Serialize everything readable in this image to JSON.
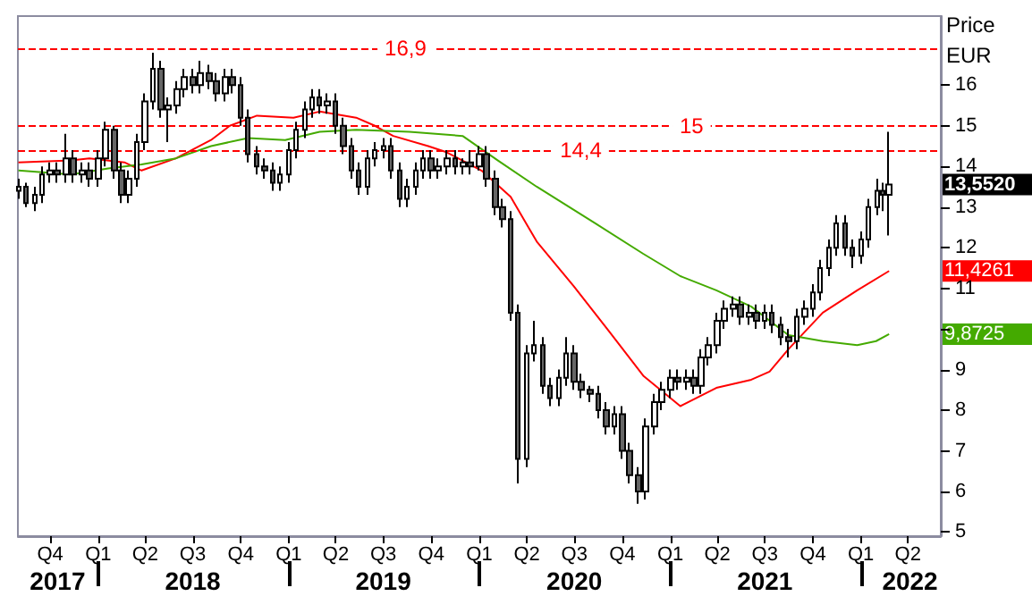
{
  "chart_data": {
    "type": "candlestick",
    "ylabel": "Price\nEUR",
    "colors": [
      "#ffffff",
      "#666666",
      "#ffffff",
      "#ffffff",
      "#ffffff",
      "#666666",
      "#ffffff",
      "#666666",
      "#ffffff",
      "#666666",
      "#ffffff",
      "#ffffff",
      "#666666",
      "#666666",
      "#ffffff",
      "#ffffff",
      "#ffffff",
      "#ffffff",
      "#666666",
      "#ffffff",
      "#ffffff",
      "#ffffff",
      "#666666",
      "#ffffff",
      "#666666",
      "#666666",
      "#ffffff",
      "#666666",
      "#666666",
      "#666666",
      "#666666",
      "#666666",
      "#666666",
      "#ffffff",
      "#ffffff",
      "#ffffff",
      "#ffffff",
      "#ffffff",
      "#666666",
      "#ffffff",
      "#666666",
      "#666666",
      "#666666",
      "#666666",
      "#ffffff",
      "#ffffff",
      "#ffffff",
      "#666666",
      "#666666",
      "#ffffff",
      "#ffffff",
      "#ffffff",
      "#666666",
      "#ffffff",
      "#ffffff",
      "#666666",
      "#ffffff",
      "#666666",
      "#ffffff",
      "#666666",
      "#666666",
      "#666666",
      "#666666",
      "#666666",
      "#ffffff",
      "#ffffff",
      "#666666",
      "#666666",
      "#ffffff",
      "#ffffff",
      "#666666",
      "#666666",
      "#666666",
      "#666666",
      "#666666",
      "#ffffff",
      "#666666",
      "#666666",
      "#666666",
      "#ffffff",
      "#ffffff",
      "#ffffff",
      "#ffffff",
      "#666666",
      "#ffffff",
      "#666666",
      "#ffffff",
      "#ffffff",
      "#ffffff",
      "#ffffff",
      "#ffffff",
      "#666666",
      "#ffffff",
      "#666666",
      "#ffffff",
      "#666666",
      "#666666",
      "#666666",
      "#ffffff",
      "#ffffff",
      "#ffffff",
      "#ffffff",
      "#ffffff",
      "#ffffff",
      "#666666",
      "#666666",
      "#ffffff",
      "#ffffff",
      "#ffffff",
      "#666666",
      "#ffffff"
    ],
    "x": [
      "2017-08-01",
      "2017-08-15",
      "2017-09-01",
      "2017-09-15",
      "2017-10-01",
      "2017-10-15",
      "2017-11-01",
      "2017-11-15",
      "2017-12-01",
      "2017-12-15",
      "2018-01-01",
      "2018-01-15",
      "2018-02-01",
      "2018-02-15",
      "2018-03-01",
      "2018-03-15",
      "2018-04-01",
      "2018-04-15",
      "2018-05-01",
      "2018-05-15",
      "2018-06-01",
      "2018-06-15",
      "2018-07-01",
      "2018-07-15",
      "2018-08-01",
      "2018-08-15",
      "2018-09-01",
      "2018-09-15",
      "2018-10-01",
      "2018-10-15",
      "2018-11-01",
      "2018-11-15",
      "2018-12-01",
      "2018-12-15",
      "2019-01-01",
      "2019-01-15",
      "2019-02-01",
      "2019-02-15",
      "2019-03-01",
      "2019-03-15",
      "2019-04-01",
      "2019-04-15",
      "2019-05-01",
      "2019-05-15",
      "2019-06-01",
      "2019-06-15",
      "2019-07-01",
      "2019-07-15",
      "2019-08-01",
      "2019-08-15",
      "2019-09-01",
      "2019-09-15",
      "2019-10-01",
      "2019-10-15",
      "2019-11-01",
      "2019-11-15",
      "2019-12-01",
      "2019-12-15",
      "2020-01-01",
      "2020-01-15",
      "2020-02-01",
      "2020-02-15",
      "2020-03-01",
      "2020-03-15",
      "2020-04-01",
      "2020-04-15",
      "2020-05-01",
      "2020-05-15",
      "2020-06-01",
      "2020-06-15",
      "2020-07-01",
      "2020-07-15",
      "2020-08-01",
      "2020-08-15",
      "2020-09-01",
      "2020-09-15",
      "2020-10-01",
      "2020-10-15",
      "2020-11-01",
      "2020-11-15",
      "2020-12-01",
      "2020-12-15",
      "2021-01-01",
      "2021-01-15",
      "2021-02-01",
      "2021-02-15",
      "2021-03-01",
      "2021-03-15",
      "2021-04-01",
      "2021-04-15",
      "2021-05-01",
      "2021-05-15",
      "2021-06-01",
      "2021-06-15",
      "2021-07-01",
      "2021-07-15",
      "2021-08-01",
      "2021-08-15",
      "2021-09-01",
      "2021-09-15",
      "2021-10-01",
      "2021-10-15",
      "2021-11-01",
      "2021-11-15",
      "2021-12-01",
      "2021-12-15",
      "2022-01-01",
      "2022-01-15",
      "2022-02-01",
      "2022-02-12",
      "2022-02-24"
    ],
    "ohlc": [
      [
        13.4,
        13.7,
        13.2,
        13.5
      ],
      [
        13.5,
        13.6,
        13.0,
        13.1
      ],
      [
        13.1,
        13.5,
        12.9,
        13.3
      ],
      [
        13.3,
        14.0,
        13.1,
        13.8
      ],
      [
        13.8,
        14.1,
        13.6,
        13.9
      ],
      [
        13.9,
        14.1,
        13.6,
        13.8
      ],
      [
        13.8,
        14.8,
        13.6,
        14.2
      ],
      [
        14.2,
        14.4,
        13.6,
        13.8
      ],
      [
        13.8,
        14.1,
        13.6,
        13.9
      ],
      [
        13.9,
        14.1,
        13.5,
        13.7
      ],
      [
        13.7,
        14.4,
        13.5,
        14.2
      ],
      [
        14.2,
        15.1,
        14.0,
        14.9
      ],
      [
        14.9,
        15.0,
        13.7,
        13.9
      ],
      [
        13.9,
        14.1,
        13.1,
        13.3
      ],
      [
        13.3,
        13.9,
        13.1,
        13.7
      ],
      [
        13.7,
        14.8,
        13.5,
        14.6
      ],
      [
        14.6,
        15.8,
        14.4,
        15.6
      ],
      [
        15.6,
        16.8,
        15.4,
        16.4
      ],
      [
        16.4,
        16.6,
        15.2,
        15.4
      ],
      [
        15.4,
        15.7,
        14.6,
        15.5
      ],
      [
        15.5,
        16.1,
        15.3,
        15.9
      ],
      [
        15.9,
        16.4,
        15.7,
        16.2
      ],
      [
        16.2,
        16.4,
        15.8,
        16.0
      ],
      [
        16.0,
        16.6,
        15.8,
        16.3
      ],
      [
        16.3,
        16.5,
        15.9,
        16.1
      ],
      [
        16.1,
        16.3,
        15.6,
        15.8
      ],
      [
        15.8,
        16.4,
        15.6,
        16.2
      ],
      [
        16.2,
        16.4,
        15.8,
        16.0
      ],
      [
        16.0,
        16.2,
        15.0,
        15.2
      ],
      [
        15.2,
        15.4,
        14.1,
        14.3
      ],
      [
        14.3,
        14.5,
        13.8,
        14.0
      ],
      [
        14.0,
        14.2,
        13.7,
        13.9
      ],
      [
        13.9,
        14.1,
        13.4,
        13.6
      ],
      [
        13.6,
        14.0,
        13.4,
        13.8
      ],
      [
        13.8,
        14.6,
        13.6,
        14.4
      ],
      [
        14.4,
        15.1,
        14.2,
        14.9
      ],
      [
        14.9,
        15.6,
        14.7,
        15.4
      ],
      [
        15.4,
        15.9,
        15.2,
        15.7
      ],
      [
        15.7,
        15.9,
        15.3,
        15.5
      ],
      [
        15.5,
        15.8,
        15.3,
        15.6
      ],
      [
        15.6,
        15.8,
        14.8,
        15.0
      ],
      [
        15.0,
        15.2,
        14.3,
        14.5
      ],
      [
        14.5,
        14.7,
        13.7,
        13.9
      ],
      [
        13.9,
        14.1,
        13.3,
        13.5
      ],
      [
        13.5,
        14.4,
        13.3,
        14.2
      ],
      [
        14.2,
        14.6,
        14.0,
        14.4
      ],
      [
        14.4,
        14.7,
        14.2,
        14.5
      ],
      [
        14.5,
        14.7,
        13.7,
        13.9
      ],
      [
        13.9,
        14.1,
        13.0,
        13.2
      ],
      [
        13.2,
        13.7,
        13.0,
        13.5
      ],
      [
        13.5,
        14.1,
        13.3,
        13.9
      ],
      [
        13.9,
        14.4,
        13.7,
        14.2
      ],
      [
        14.2,
        14.4,
        13.7,
        13.9
      ],
      [
        13.9,
        14.2,
        13.7,
        14.0
      ],
      [
        14.0,
        14.4,
        13.8,
        14.2
      ],
      [
        14.2,
        14.4,
        13.8,
        14.0
      ],
      [
        14.0,
        14.2,
        13.8,
        14.1
      ],
      [
        14.1,
        14.4,
        13.8,
        14.0
      ],
      [
        14.0,
        14.5,
        13.9,
        14.3
      ],
      [
        14.3,
        14.5,
        13.5,
        13.7
      ],
      [
        13.7,
        13.9,
        12.8,
        13.0
      ],
      [
        13.0,
        13.2,
        12.5,
        12.7
      ],
      [
        12.7,
        12.9,
        10.2,
        10.4
      ],
      [
        10.4,
        10.6,
        6.2,
        6.8
      ],
      [
        6.8,
        9.6,
        6.6,
        9.4
      ],
      [
        9.4,
        10.2,
        9.2,
        9.6
      ],
      [
        9.6,
        9.8,
        8.4,
        8.6
      ],
      [
        8.6,
        8.8,
        8.1,
        8.3
      ],
      [
        8.3,
        9.0,
        8.1,
        8.8
      ],
      [
        8.8,
        9.8,
        8.6,
        9.4
      ],
      [
        9.4,
        9.6,
        8.5,
        8.7
      ],
      [
        8.7,
        8.9,
        8.3,
        8.5
      ],
      [
        8.5,
        8.6,
        8.2,
        8.4
      ],
      [
        8.4,
        8.6,
        7.8,
        8.0
      ],
      [
        8.0,
        8.2,
        7.4,
        7.6
      ],
      [
        7.6,
        8.1,
        7.4,
        7.9
      ],
      [
        7.9,
        8.1,
        6.8,
        7.0
      ],
      [
        7.0,
        7.2,
        6.2,
        6.4
      ],
      [
        6.4,
        6.6,
        5.7,
        6.0
      ],
      [
        6.0,
        7.8,
        5.8,
        7.6
      ],
      [
        7.6,
        8.4,
        7.4,
        8.2
      ],
      [
        8.2,
        8.7,
        8.0,
        8.5
      ],
      [
        8.5,
        9.0,
        8.3,
        8.8
      ],
      [
        8.8,
        9.0,
        8.5,
        8.7
      ],
      [
        8.7,
        9.0,
        8.5,
        8.8
      ],
      [
        8.8,
        9.0,
        8.4,
        8.6
      ],
      [
        8.6,
        9.5,
        8.4,
        9.3
      ],
      [
        9.3,
        9.8,
        9.1,
        9.6
      ],
      [
        9.6,
        10.4,
        9.4,
        10.2
      ],
      [
        10.2,
        10.7,
        10.0,
        10.5
      ],
      [
        10.5,
        10.8,
        10.3,
        10.6
      ],
      [
        10.6,
        10.8,
        10.1,
        10.3
      ],
      [
        10.3,
        10.6,
        10.1,
        10.4
      ],
      [
        10.4,
        10.6,
        10.0,
        10.2
      ],
      [
        10.2,
        10.6,
        10.0,
        10.4
      ],
      [
        10.4,
        10.6,
        9.9,
        10.1
      ],
      [
        10.1,
        10.3,
        9.6,
        9.8
      ],
      [
        9.8,
        10.0,
        9.3,
        9.7
      ],
      [
        9.7,
        10.5,
        9.5,
        10.3
      ],
      [
        10.3,
        10.7,
        10.1,
        10.5
      ],
      [
        10.5,
        11.1,
        10.3,
        10.9
      ],
      [
        10.9,
        11.7,
        10.7,
        11.5
      ],
      [
        11.5,
        12.2,
        11.3,
        12.0
      ],
      [
        12.0,
        12.8,
        11.8,
        12.6
      ],
      [
        12.6,
        12.8,
        11.8,
        12.0
      ],
      [
        12.0,
        12.2,
        11.5,
        11.8
      ],
      [
        11.8,
        12.4,
        11.6,
        12.2
      ],
      [
        12.2,
        13.2,
        12.0,
        13.0
      ],
      [
        13.0,
        13.7,
        12.8,
        13.4
      ],
      [
        13.4,
        13.6,
        12.9,
        13.3
      ],
      [
        13.3,
        14.85,
        12.3,
        13.552
      ]
    ],
    "series": [
      {
        "type": "line",
        "color": "#ff0000",
        "x": [
          "2017-08-01",
          "2017-11-10",
          "2017-12-15",
          "2018-02-20",
          "2018-03-25",
          "2018-05-30",
          "2018-08-05",
          "2018-09-10",
          "2018-11-01",
          "2019-01-10",
          "2019-03-01",
          "2019-05-10",
          "2019-06-15",
          "2019-07-20",
          "2019-09-25",
          "2019-10-30",
          "2020-01-05",
          "2020-03-01",
          "2020-04-20",
          "2020-06-30",
          "2020-09-05",
          "2020-11-10",
          "2021-01-20",
          "2021-03-30",
          "2021-06-05",
          "2021-07-10",
          "2021-08-15",
          "2021-10-20",
          "2021-12-25",
          "2022-02-24"
        ],
        "values": [
          14.1,
          14.15,
          14.2,
          14.1,
          13.9,
          14.2,
          14.65,
          15.0,
          15.25,
          15.2,
          15.35,
          15.2,
          15.0,
          14.75,
          14.5,
          14.35,
          13.9,
          13.25,
          12.15,
          11.05,
          9.95,
          8.85,
          8.1,
          8.55,
          8.75,
          8.95,
          9.5,
          10.4,
          10.95,
          11.4261
        ]
      },
      {
        "type": "line",
        "color": "#44aa00",
        "x": [
          "2017-08-01",
          "2017-11-10",
          "2018-01-20",
          "2018-03-25",
          "2018-05-30",
          "2018-08-05",
          "2018-10-15",
          "2018-12-25",
          "2019-03-01",
          "2019-05-10",
          "2019-08-20",
          "2019-11-30",
          "2020-02-05",
          "2020-04-20",
          "2020-08-10",
          "2020-11-10",
          "2021-01-20",
          "2021-03-30",
          "2021-06-05",
          "2021-08-15",
          "2021-10-20",
          "2021-12-25",
          "2022-01-30",
          "2022-02-24"
        ],
        "values": [
          13.9,
          13.8,
          13.95,
          14.05,
          14.2,
          14.5,
          14.7,
          14.65,
          14.85,
          14.9,
          14.85,
          14.75,
          14.15,
          13.5,
          12.6,
          11.85,
          11.3,
          10.95,
          10.55,
          9.85,
          9.7,
          9.6,
          9.7,
          9.8725
        ]
      }
    ],
    "xlim": [
      "2017-07-31",
      "2022-06-03"
    ],
    "xticks": [
      {
        "value": "2017-10-01",
        "label": "Q4"
      },
      {
        "value": "2018-01-01",
        "label": "Q1"
      },
      {
        "value": "2018-04-01",
        "label": "Q2"
      },
      {
        "value": "2018-07-01",
        "label": "Q3"
      },
      {
        "value": "2018-10-01",
        "label": "Q4"
      },
      {
        "value": "2019-01-01",
        "label": "Q1"
      },
      {
        "value": "2019-04-01",
        "label": "Q2"
      },
      {
        "value": "2019-07-01",
        "label": "Q3"
      },
      {
        "value": "2019-10-01",
        "label": "Q4"
      },
      {
        "value": "2020-01-01",
        "label": "Q1"
      },
      {
        "value": "2020-04-01",
        "label": "Q2"
      },
      {
        "value": "2020-07-01",
        "label": "Q3"
      },
      {
        "value": "2020-10-01",
        "label": "Q4"
      },
      {
        "value": "2021-01-01",
        "label": "Q1"
      },
      {
        "value": "2021-04-01",
        "label": "Q2"
      },
      {
        "value": "2021-07-01",
        "label": "Q3"
      },
      {
        "value": "2021-10-01",
        "label": "Q4"
      },
      {
        "value": "2022-01-01",
        "label": "Q1"
      },
      {
        "value": "2022-04-01",
        "label": "Q2"
      }
    ],
    "x2lim": [
      "2017-07-31",
      "2022-06-03"
    ],
    "x2ticks": [
      {
        "value": "2017-10-15",
        "label": "2017"
      },
      {
        "value": "2018-01-01",
        "label": null
      },
      {
        "value": "2018-07-01",
        "label": "2018"
      },
      {
        "value": "2019-01-01",
        "label": null
      },
      {
        "value": "2019-07-01",
        "label": "2019"
      },
      {
        "value": "2020-01-01",
        "label": null
      },
      {
        "value": "2020-07-01",
        "label": "2020"
      },
      {
        "value": "2021-01-01",
        "label": null
      },
      {
        "value": "2021-07-01",
        "label": "2021"
      },
      {
        "value": "2022-01-01",
        "label": null
      },
      {
        "value": "2022-04-05",
        "label": "2022"
      }
    ],
    "ylim": [
      4.9,
      17.7
    ],
    "yticks": [
      5,
      6,
      7,
      8,
      9,
      {
        "value": 10,
        "label": null
      },
      11,
      12,
      13,
      14,
      15,
      16
    ],
    "ref_lines": [
      {
        "axis": "y",
        "value": 16.9,
        "label": "16,9",
        "color": "#ff0000",
        "line_style": "dashed"
      },
      {
        "axis": "y",
        "value": 15,
        "label": "15",
        "color": "#ff0000",
        "line_style": "dashed"
      },
      {
        "axis": "y",
        "value": 14.4,
        "label": "14,4",
        "color": "#ff0000",
        "line_style": "dashed"
      }
    ],
    "annotations": [
      {
        "text": "13,5520",
        "x": "2022-02-24",
        "y": 13.552
      },
      {
        "text": "11,4261",
        "x": "2022-02-24",
        "y": 11.4261
      },
      {
        "text": "9,8725",
        "x": "2022-02-24",
        "y": 9.8725
      }
    ],
    "grid": false,
    "marker": "none"
  }
}
